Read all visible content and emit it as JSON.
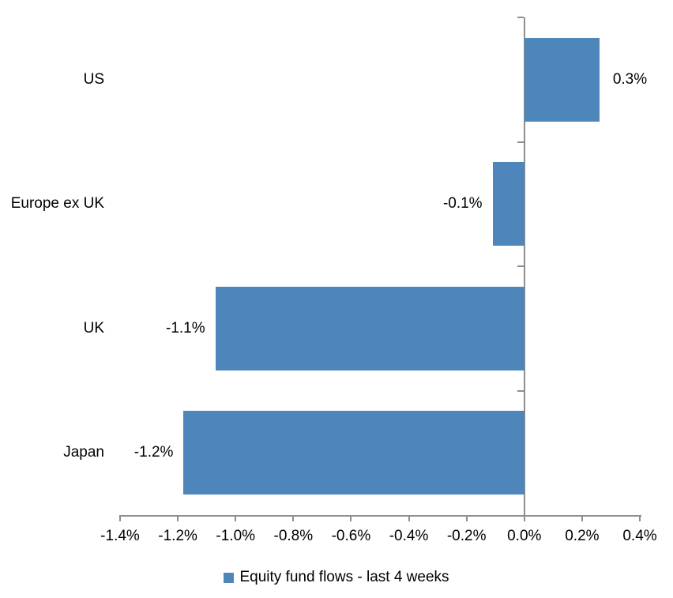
{
  "chart_data": {
    "type": "bar",
    "orientation": "horizontal",
    "categories": [
      "US",
      "Europe ex UK",
      "UK",
      "Japan"
    ],
    "values": [
      0.26,
      -0.11,
      -1.07,
      -1.18
    ],
    "data_labels": [
      "0.3%",
      "-0.1%",
      "-1.1%",
      "-1.2%"
    ],
    "xlim": [
      -1.4,
      0.4
    ],
    "x_tick_values": [
      -1.4,
      -1.2,
      -1.0,
      -0.8,
      -0.6,
      -0.4,
      -0.2,
      0.0,
      0.2,
      0.4
    ],
    "x_tick_labels": [
      "-1.4%",
      "-1.2%",
      "-1.0%",
      "-0.8%",
      "-0.6%",
      "-0.4%",
      "-0.2%",
      "0.0%",
      "0.2%",
      "0.4%"
    ],
    "grid": "off",
    "legend_position": "bottom",
    "legend": [
      {
        "label": "Equity fund flows - last 4 weeks",
        "color": "#4e86bc"
      }
    ],
    "bar_color": "#4e86bc",
    "axis_color": "#8e8e8e",
    "text_color": "#000000"
  }
}
